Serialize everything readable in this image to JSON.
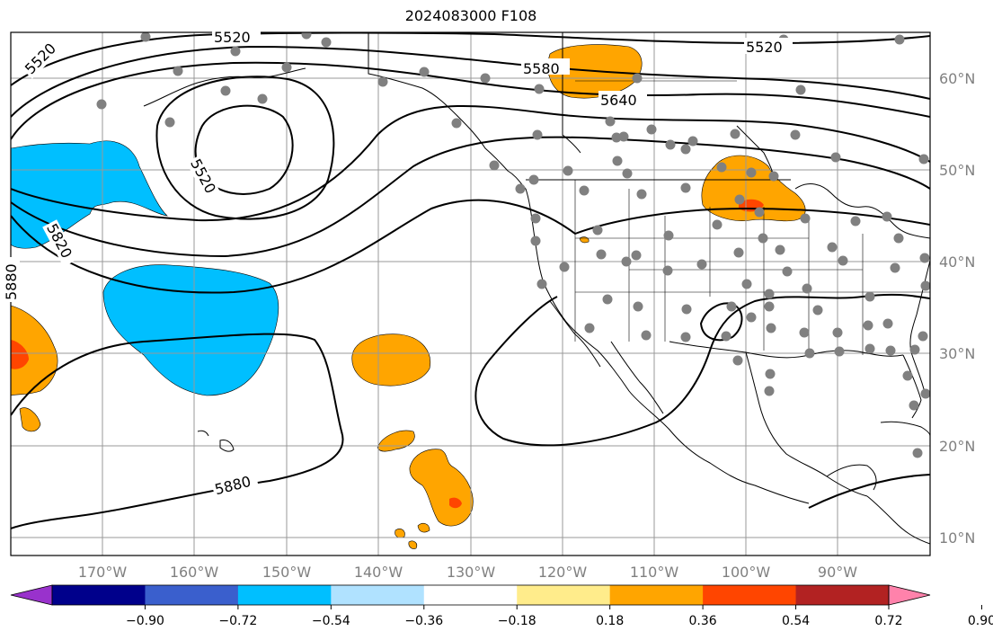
{
  "title": "2024083000 F108",
  "lat_labels": [
    "60°N",
    "50°N",
    "40°N",
    "30°N",
    "20°N",
    "10°N"
  ],
  "lon_labels": [
    "170°W",
    "160°W",
    "150°W",
    "140°W",
    "130°W",
    "120°W",
    "110°W",
    "100°W",
    "90°W"
  ],
  "colorbar": {
    "ticks": [
      "−0.90",
      "−0.72",
      "−0.54",
      "−0.36",
      "−0.18",
      "0.18",
      "0.36",
      "0.54",
      "0.72",
      "0.90"
    ],
    "colors": [
      "#9932CC",
      "#00008B",
      "#3A5FCD",
      "#00BFFF",
      "#B0E2FF",
      "#FFFFFF",
      "#FFEC8B",
      "#FFA500",
      "#FF4500",
      "#B22222",
      "#FF82AB"
    ]
  },
  "contour_labels": [
    "5520",
    "5520",
    "5520",
    "5580",
    "5640",
    "5520",
    "5820",
    "5880",
    "5880"
  ],
  "colors": {
    "negative_fill": "#00BFFF",
    "positive_fill": "#FFA500",
    "strong_positive_fill": "#FF4500",
    "station_dot": "#808080"
  }
}
